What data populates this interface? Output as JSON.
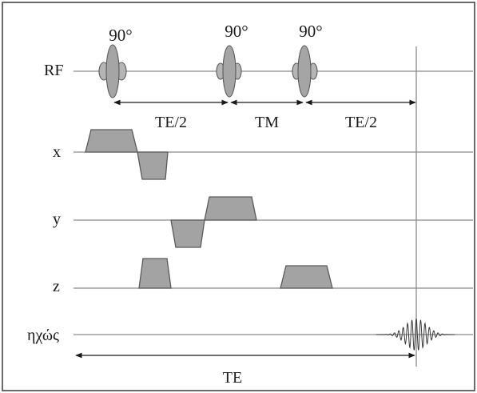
{
  "rows": {
    "rf": "RF",
    "x": "x",
    "y": "y",
    "z": "z",
    "echo": "ηχώς"
  },
  "pulses": [
    "90°",
    "90°",
    "90°"
  ],
  "intervals": {
    "first": "TE/2",
    "mixing": "TM",
    "second": "TE/2",
    "total": "TE"
  },
  "colors": {
    "baseline": "#8a8a8a",
    "gradient_fill": "#a3a3a3",
    "outline": "#5a5a5a",
    "border": "#3a3a3a"
  }
}
